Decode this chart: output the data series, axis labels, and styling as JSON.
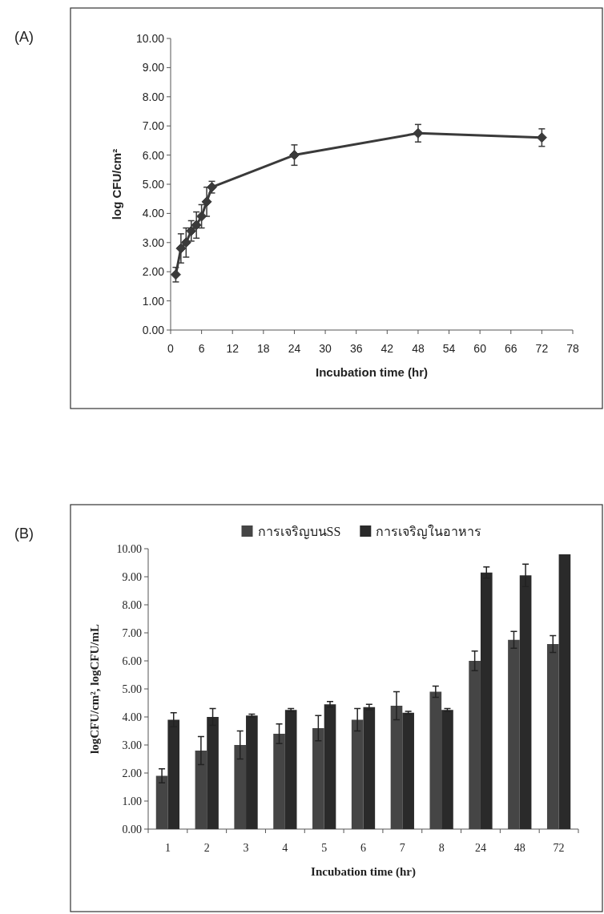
{
  "chart_data": [
    {
      "type": "line",
      "annotations": [
        "(A)"
      ],
      "xlabel": "Incubation time (hr)",
      "ylabel": "log CFU/cm²",
      "marker": "diamond",
      "line_style": "solid",
      "legend": false,
      "grid": false,
      "x": [
        1,
        2,
        3,
        4,
        5,
        6,
        7,
        8,
        24,
        48,
        72
      ],
      "xlim": [
        0,
        78
      ],
      "xticks": [
        0,
        6,
        12,
        18,
        24,
        30,
        36,
        42,
        48,
        54,
        60,
        66,
        72,
        78
      ],
      "ylim": [
        0,
        10
      ],
      "yticks": [
        {
          "value": 0,
          "label": "0.00"
        },
        {
          "value": 1,
          "label": "1.00"
        },
        {
          "value": 2,
          "label": "2.00"
        },
        {
          "value": 3,
          "label": "3.00"
        },
        {
          "value": 4,
          "label": "4.00"
        },
        {
          "value": 5,
          "label": "5.00"
        },
        {
          "value": 6,
          "label": "6.00"
        },
        {
          "value": 7,
          "label": "7.00"
        },
        {
          "value": 8,
          "label": "8.00"
        },
        {
          "value": 9,
          "label": "9.00"
        },
        {
          "value": 10,
          "label": "10.00"
        }
      ],
      "series": [
        {
          "color": "#3a3a3a",
          "values": [
            1.9,
            2.8,
            3.0,
            3.4,
            3.6,
            3.9,
            4.4,
            4.9,
            6.0,
            6.75,
            6.6
          ],
          "errors": [
            0.25,
            0.5,
            0.5,
            0.35,
            0.45,
            0.4,
            0.5,
            0.2,
            0.35,
            0.3,
            0.3
          ]
        }
      ]
    },
    {
      "type": "bar",
      "annotations": [
        "(B)"
      ],
      "xlabel": "Incubation time (hr)",
      "ylabel": "logCFU/cm², logCFU/mL",
      "legend": "top",
      "grid": false,
      "categories": [
        "1",
        "2",
        "3",
        "4",
        "5",
        "6",
        "7",
        "8",
        "24",
        "48",
        "72"
      ],
      "ylim": [
        0,
        10
      ],
      "yticks": [
        {
          "value": 0,
          "label": "0.00"
        },
        {
          "value": 1,
          "label": "1.00"
        },
        {
          "value": 2,
          "label": "2.00"
        },
        {
          "value": 3,
          "label": "3.00"
        },
        {
          "value": 4,
          "label": "4.00"
        },
        {
          "value": 5,
          "label": "5.00"
        },
        {
          "value": 6,
          "label": "6.00"
        },
        {
          "value": 7,
          "label": "7.00"
        },
        {
          "value": 8,
          "label": "8.00"
        },
        {
          "value": 9,
          "label": "9.00"
        },
        {
          "value": 10,
          "label": "10.00"
        }
      ],
      "series": [
        {
          "name": "การเจริญบนSS",
          "color": "#454545",
          "values": [
            1.9,
            2.8,
            3.0,
            3.4,
            3.6,
            3.9,
            4.4,
            4.9,
            6.0,
            6.75,
            6.6
          ],
          "errors": [
            0.25,
            0.5,
            0.5,
            0.35,
            0.45,
            0.4,
            0.5,
            0.2,
            0.35,
            0.3,
            0.3
          ]
        },
        {
          "name": "การเจริญในอาหาร",
          "color": "#2a2a2a",
          "values": [
            3.9,
            4.0,
            4.05,
            4.25,
            4.45,
            4.35,
            4.15,
            4.25,
            9.15,
            9.05,
            9.8
          ],
          "errors": [
            0.25,
            0.3,
            0.05,
            0.05,
            0.1,
            0.1,
            0.05,
            0.05,
            0.2,
            0.4,
            null
          ]
        }
      ]
    }
  ]
}
